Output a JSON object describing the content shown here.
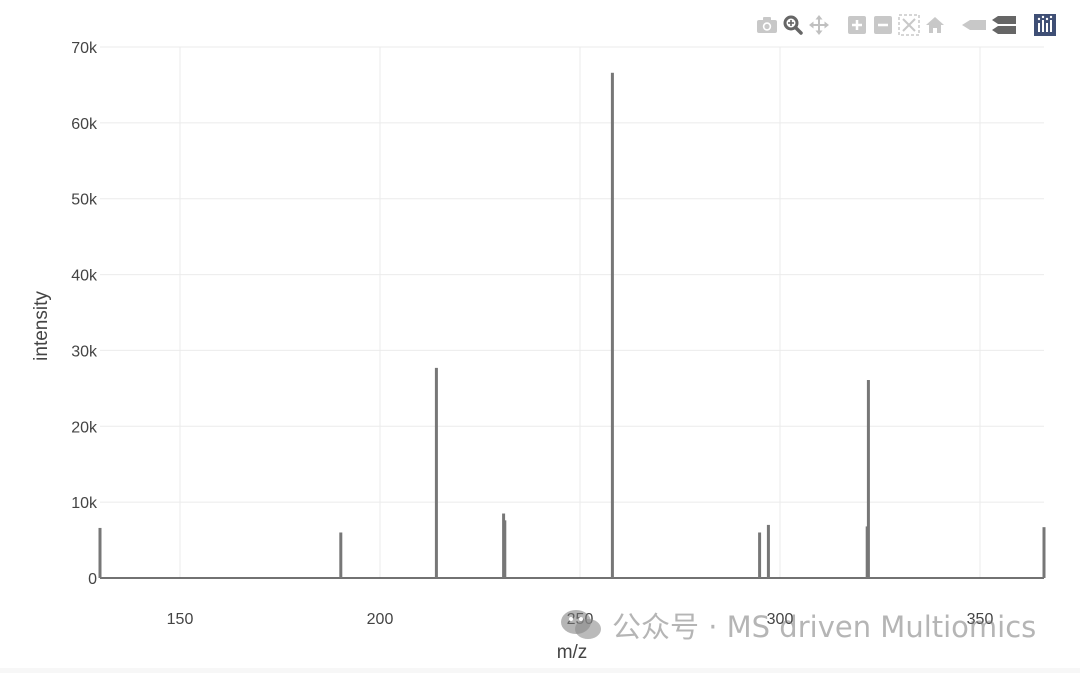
{
  "modebar": {
    "icons": [
      "camera-icon",
      "zoom-icon",
      "pan-icon",
      "zoom-in-icon",
      "zoom-out-icon",
      "autoscale-icon",
      "reset-axes-icon",
      "spike-lines-icon",
      "compare-hover-icon",
      "plotly-logo-icon"
    ]
  },
  "chart_data": {
    "type": "bar",
    "title": "",
    "xlabel": "m/z",
    "ylabel": "intensity",
    "xlim": [
      130,
      366
    ],
    "ylim": [
      0,
      70000
    ],
    "x_ticks": [
      150,
      200,
      250,
      300,
      350
    ],
    "y_ticks": [
      0,
      10000,
      20000,
      30000,
      40000,
      50000,
      60000,
      70000
    ],
    "x_tick_labels": [
      "150",
      "200",
      "250",
      "300",
      "350"
    ],
    "y_tick_labels": [
      "0",
      "10k",
      "20k",
      "30k",
      "40k",
      "50k",
      "60k",
      "70k"
    ],
    "grid": true,
    "series_color": "#777777",
    "x": [
      130,
      190.2,
      214.1,
      230.9,
      231.2,
      258.1,
      294.9,
      297.1,
      321.8,
      322.1,
      366
    ],
    "values": [
      6600,
      6000,
      27700,
      8500,
      7600,
      66600,
      6000,
      7000,
      6800,
      26100,
      6700
    ]
  },
  "watermark": {
    "text": "公众号 · MS driven Multiomics"
  }
}
